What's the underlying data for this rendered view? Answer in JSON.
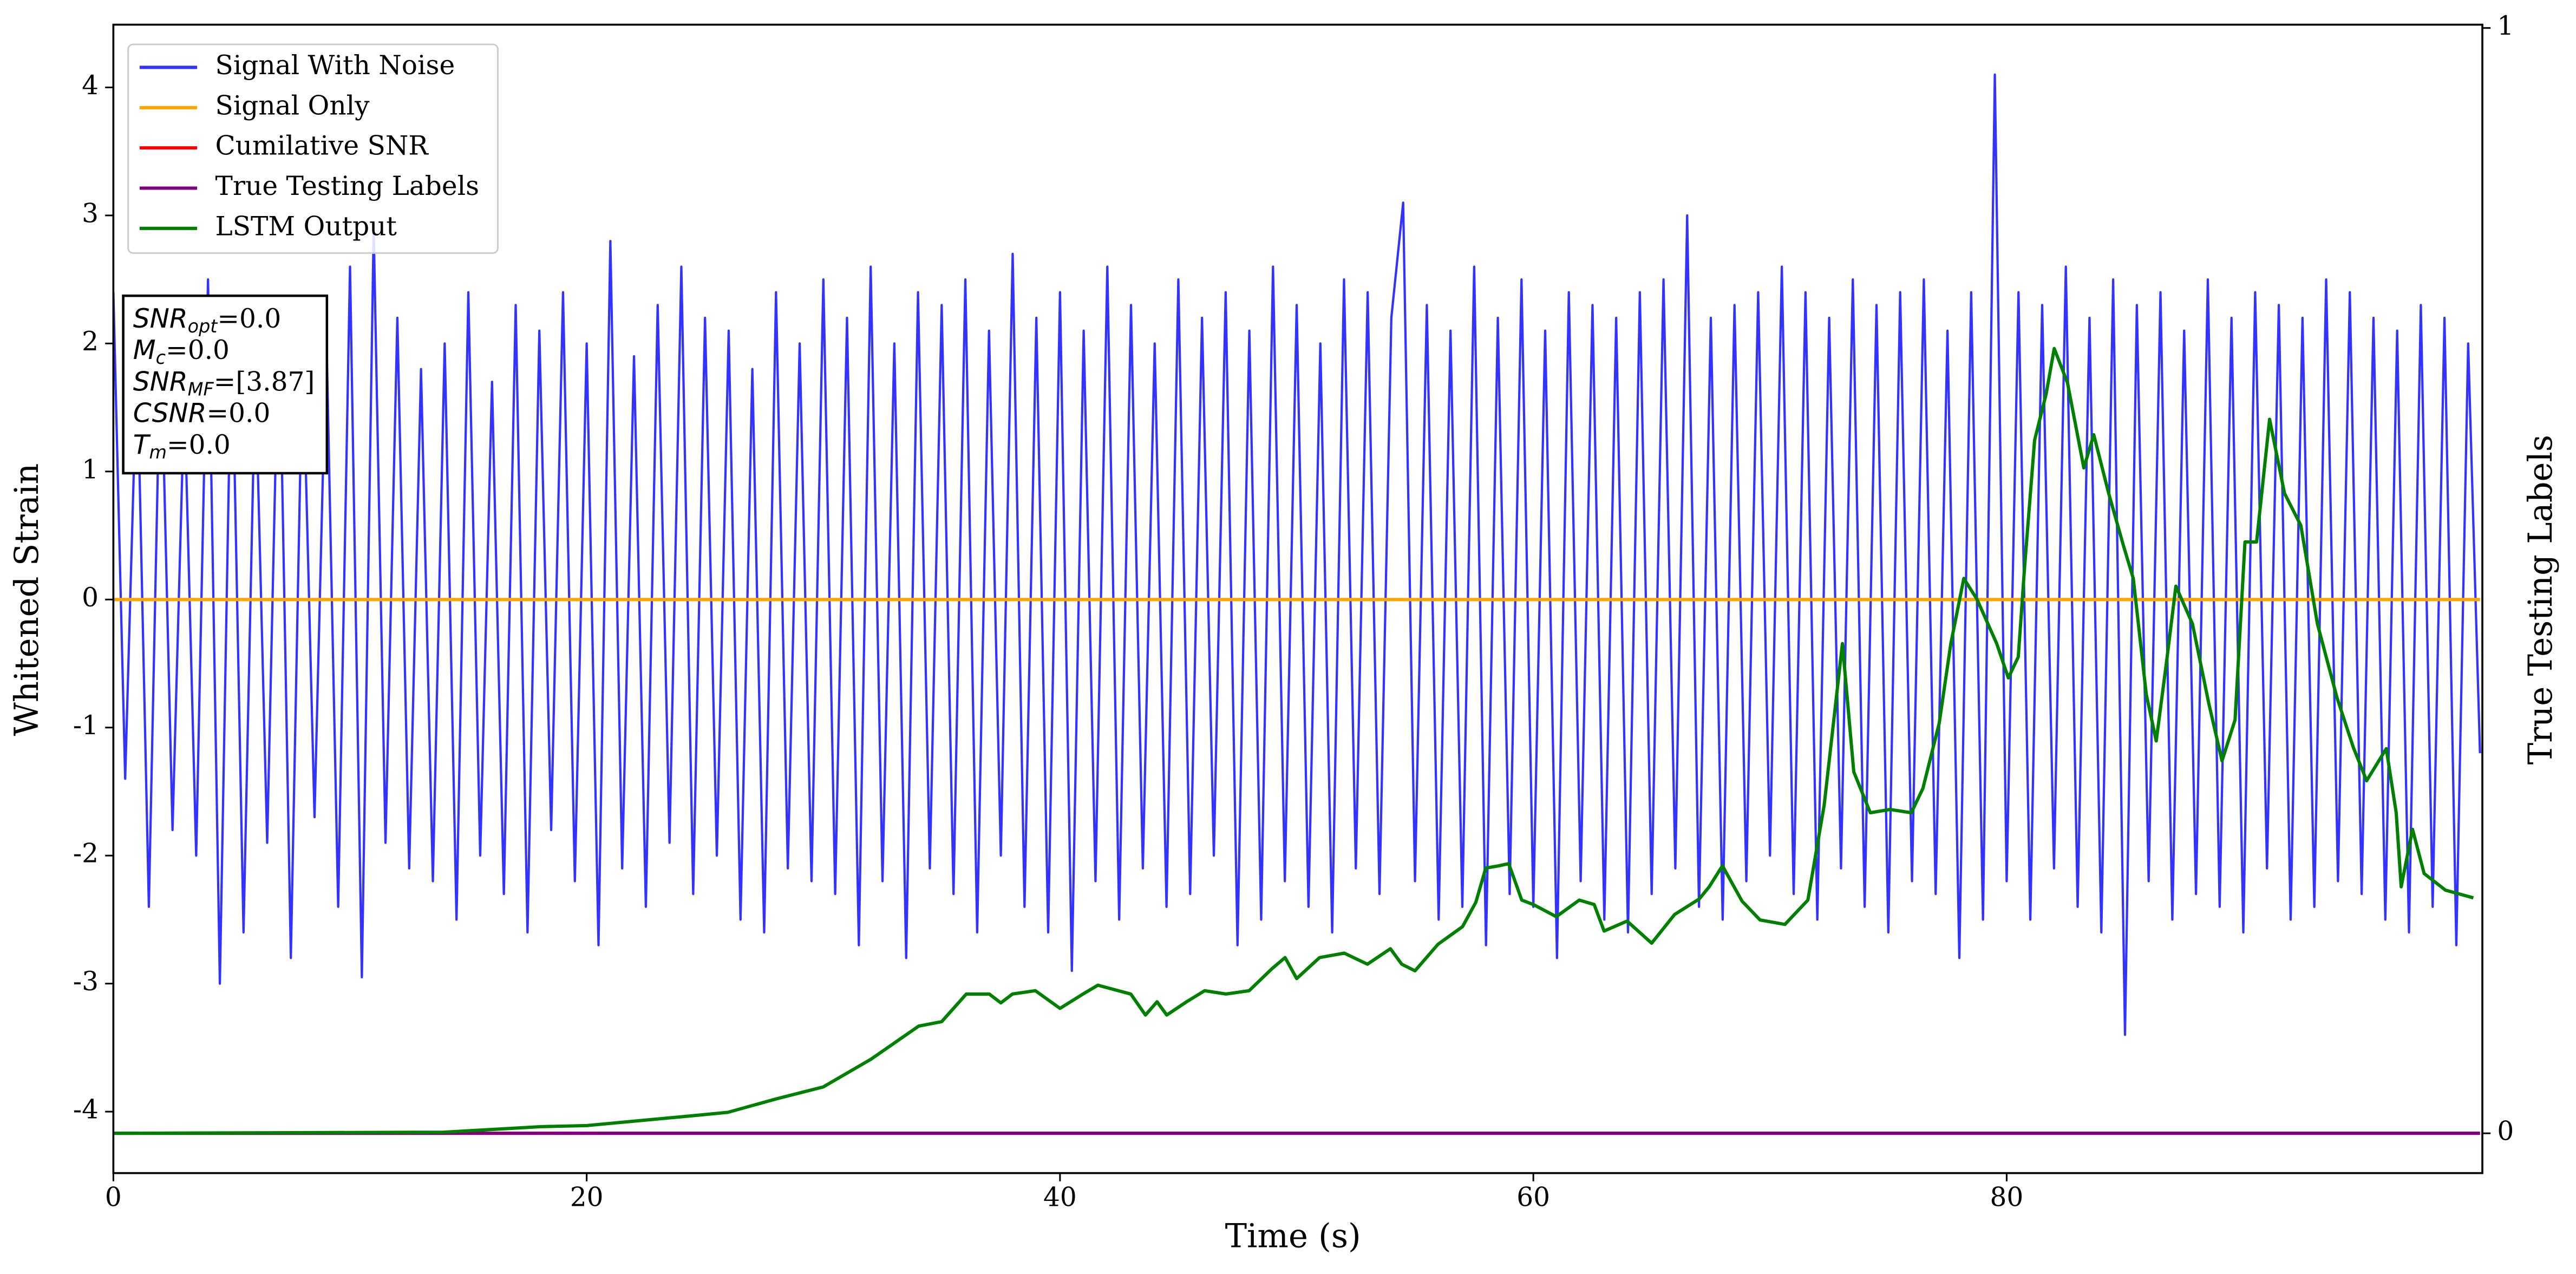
{
  "chart_data": {
    "type": "line",
    "xlabel": "Time (s)",
    "ylabel": "Whitened Strain",
    "y2label": "True Testing Labels",
    "xlim": [
      0,
      100.1
    ],
    "xticks": [
      0,
      20,
      40,
      60,
      80
    ],
    "ylim": [
      -4.48,
      4.49
    ],
    "yticks": [
      -4,
      -3,
      -2,
      -1,
      0,
      1,
      2,
      3,
      4
    ],
    "y2lim": [
      -0.036,
      1.003
    ],
    "y2ticks": [
      0,
      1
    ],
    "grid": false,
    "legend": "upper left",
    "annotation": [
      {
        "symbol": "SNR",
        "sub": "opt",
        "text": "=0.0"
      },
      {
        "symbol": "M",
        "sub": "c",
        "text": "=0.0"
      },
      {
        "symbol": "SNR",
        "sub": "MF",
        "text": "=[3.87]"
      },
      {
        "symbol": "CSNR",
        "text": "=0.0"
      },
      {
        "symbol": "T",
        "sub": "m",
        "text": "=0.0"
      }
    ],
    "series": [
      {
        "name": "Signal With Noise",
        "color": "#3333ff",
        "axis": "y",
        "x": [
          0,
          0.5,
          1,
          1.5,
          2,
          2.5,
          3,
          3.5,
          4,
          4.5,
          5,
          5.5,
          6,
          6.5,
          7,
          7.5,
          8,
          8.5,
          9,
          9.5,
          10,
          10.5,
          11,
          11.5,
          12,
          12.5,
          13,
          13.5,
          14,
          14.5,
          15,
          15.5,
          16,
          16.5,
          17,
          17.5,
          18,
          18.5,
          19,
          19.5,
          20,
          20.5,
          21,
          21.5,
          22,
          22.5,
          23,
          23.5,
          24,
          24.5,
          25,
          25.5,
          26,
          26.5,
          27,
          27.5,
          28,
          28.5,
          29,
          29.5,
          30,
          30.5,
          31,
          31.5,
          32,
          32.5,
          33,
          33.5,
          34,
          34.5,
          35,
          35.5,
          36,
          36.5,
          37,
          37.5,
          38,
          38.5,
          39,
          39.5,
          40,
          40.5,
          41,
          41.5,
          42,
          42.5,
          43,
          43.5,
          44,
          44.5,
          45,
          45.5,
          46,
          46.5,
          47,
          47.5,
          48,
          48.5,
          49,
          49.5,
          50,
          50.5,
          51,
          51.5,
          52,
          52.5,
          53,
          53.5,
          54,
          54.5,
          55,
          55.5,
          56,
          56.5,
          57,
          57.5,
          58,
          58.5,
          59,
          59.5,
          60,
          60.5,
          61,
          61.5,
          62,
          62.5,
          63,
          63.5,
          64,
          64.5,
          65,
          65.5,
          66,
          66.5,
          67,
          67.5,
          68,
          68.5,
          69,
          69.5,
          70,
          70.5,
          71,
          71.5,
          72,
          72.5,
          73,
          73.5,
          74,
          74.5,
          75,
          75.5,
          76,
          76.5,
          77,
          77.5,
          78,
          78.5,
          79,
          79.5,
          80,
          80.5,
          81,
          81.5,
          82,
          82.5,
          83,
          83.5,
          84,
          84.5,
          85,
          85.5,
          86,
          86.5,
          87,
          87.5,
          88,
          88.5,
          89,
          89.5,
          90,
          90.5,
          91,
          91.5,
          92,
          92.5,
          93,
          93.5,
          94,
          94.5,
          95,
          95.5,
          96,
          96.5,
          97,
          97.5,
          98,
          98.5,
          99,
          99.5,
          100
        ],
        "values": [
          2.4,
          -1.4,
          1.9,
          -2.4,
          2.1,
          -1.8,
          1.6,
          -2.0,
          2.5,
          -3.0,
          2.2,
          -2.6,
          1.8,
          -1.9,
          2.3,
          -2.8,
          2.0,
          -1.7,
          2.1,
          -2.4,
          2.6,
          -2.95,
          2.9,
          -1.9,
          2.2,
          -2.1,
          1.8,
          -2.2,
          2.0,
          -2.5,
          2.4,
          -2.0,
          1.7,
          -2.3,
          2.3,
          -2.6,
          2.1,
          -1.8,
          2.4,
          -2.2,
          2.0,
          -2.7,
          2.8,
          -2.1,
          1.9,
          -2.4,
          2.3,
          -1.9,
          2.6,
          -2.3,
          2.2,
          -2.0,
          2.1,
          -2.5,
          1.8,
          -2.6,
          2.4,
          -2.1,
          2.0,
          -2.2,
          2.5,
          -2.3,
          2.2,
          -2.7,
          2.6,
          -2.2,
          2.0,
          -2.8,
          2.4,
          -2.1,
          2.3,
          -2.3,
          2.5,
          -2.6,
          2.1,
          -2.0,
          2.7,
          -2.4,
          2.2,
          -2.6,
          2.4,
          -2.9,
          2.1,
          -2.2,
          2.6,
          -2.5,
          2.3,
          -2.1,
          2.0,
          -2.4,
          2.5,
          -2.3,
          2.2,
          -2.0,
          2.4,
          -2.7,
          2.1,
          -2.5,
          2.6,
          -2.2,
          2.3,
          -2.4,
          2.0,
          -2.6,
          2.5,
          -2.1,
          2.4,
          -2.3,
          2.2,
          3.1,
          -2.2,
          2.3,
          -2.5,
          2.1,
          -2.4,
          2.6,
          -2.7,
          2.2,
          -2.3,
          2.5,
          -2.4,
          2.1,
          -2.8,
          2.4,
          -2.2,
          2.3,
          -2.5,
          2.2,
          -2.6,
          2.4,
          -2.3,
          2.5,
          -2.1,
          3.0,
          -2.4,
          2.2,
          -2.5,
          2.3,
          -2.2,
          2.4,
          -2.0,
          2.6,
          -2.3,
          2.4,
          -2.5,
          2.2,
          -2.1,
          2.5,
          -2.4,
          2.3,
          -2.6,
          2.4,
          -2.2,
          2.5,
          -2.3,
          2.1,
          -2.8,
          2.4,
          -2.5,
          4.1,
          -2.2,
          2.4,
          -2.5,
          2.3,
          -2.1,
          2.6,
          -2.4,
          2.2,
          -2.6,
          2.5,
          -3.4,
          2.3,
          -2.2,
          2.4,
          -2.5,
          2.1,
          -2.3,
          2.5,
          -2.4,
          2.2,
          -2.6,
          2.4,
          -2.1,
          2.3,
          -2.5,
          2.2,
          -2.4,
          2.5,
          -2.2,
          2.4,
          -2.3,
          2.2,
          -2.5,
          2.1,
          -2.6,
          2.3,
          -2.4,
          2.2,
          -2.7,
          2.0,
          -1.2
        ]
      },
      {
        "name": "Signal Only",
        "color": "#ffa500",
        "axis": "y",
        "x": [
          0,
          100
        ],
        "values": [
          0,
          0
        ]
      },
      {
        "name": "Cumilative SNR",
        "color": "#ff0000",
        "axis": "y2",
        "x": [
          0,
          100
        ],
        "values": [
          0,
          0
        ]
      },
      {
        "name": "True Testing Labels",
        "color": "#800080",
        "axis": "y2",
        "x": [
          0,
          100
        ],
        "values": [
          0,
          0
        ]
      },
      {
        "name": "LSTM Output",
        "color": "#008000",
        "axis": "y2",
        "x": [
          0,
          13.96,
          18.06,
          20,
          24.03,
          25.97,
          27.99,
          30,
          32.01,
          34.03,
          35,
          36.04,
          37.01,
          37.5,
          37.99,
          38.96,
          40,
          40.97,
          41.6,
          42.99,
          43.61,
          44.1,
          44.51,
          45.35,
          46.11,
          47.01,
          47.99,
          48.96,
          49.51,
          50,
          50.97,
          52.01,
          52.99,
          53.96,
          54.44,
          55,
          55.97,
          57.01,
          57.57,
          57.99,
          58.54,
          58.96,
          59.51,
          60,
          60.97,
          61.94,
          62.57,
          62.99,
          63.96,
          65,
          65.97,
          67.01,
          67.43,
          67.99,
          68.82,
          69.58,
          70.63,
          71.6,
          72.29,
          73.06,
          73.54,
          74.24,
          75.07,
          75.97,
          76.46,
          77.15,
          77.64,
          78.19,
          78.75,
          79.58,
          80.07,
          80.49,
          80.76,
          81.18,
          81.67,
          82.01,
          82.57,
          83.26,
          83.68,
          84.31,
          84.93,
          85.35,
          85.9,
          86.32,
          86.74,
          87.15,
          87.85,
          88.54,
          89.1,
          89.65,
          90.07,
          90.56,
          91.11,
          91.74,
          92.43,
          93.13,
          93.96,
          94.65,
          95.21,
          96.04,
          96.46,
          96.67,
          97.15,
          97.64,
          98.54,
          99.72
        ],
        "values": [
          0,
          0.001,
          0.006,
          0.007,
          0.015,
          0.019,
          0.031,
          0.042,
          0.067,
          0.097,
          0.101,
          0.126,
          0.126,
          0.118,
          0.126,
          0.129,
          0.113,
          0.126,
          0.134,
          0.126,
          0.107,
          0.119,
          0.107,
          0.119,
          0.129,
          0.126,
          0.129,
          0.149,
          0.159,
          0.14,
          0.159,
          0.163,
          0.153,
          0.167,
          0.153,
          0.147,
          0.171,
          0.187,
          0.209,
          0.24,
          0.242,
          0.244,
          0.211,
          0.207,
          0.196,
          0.211,
          0.207,
          0.183,
          0.192,
          0.172,
          0.198,
          0.212,
          0.223,
          0.242,
          0.21,
          0.193,
          0.189,
          0.211,
          0.297,
          0.443,
          0.327,
          0.29,
          0.293,
          0.29,
          0.312,
          0.371,
          0.443,
          0.502,
          0.483,
          0.443,
          0.412,
          0.431,
          0.513,
          0.627,
          0.669,
          0.71,
          0.679,
          0.602,
          0.632,
          0.579,
          0.532,
          0.502,
          0.397,
          0.355,
          0.424,
          0.495,
          0.461,
          0.389,
          0.337,
          0.374,
          0.535,
          0.535,
          0.646,
          0.579,
          0.55,
          0.461,
          0.394,
          0.349,
          0.319,
          0.348,
          0.29,
          0.223,
          0.275,
          0.235,
          0.22,
          0.213
        ]
      }
    ]
  }
}
